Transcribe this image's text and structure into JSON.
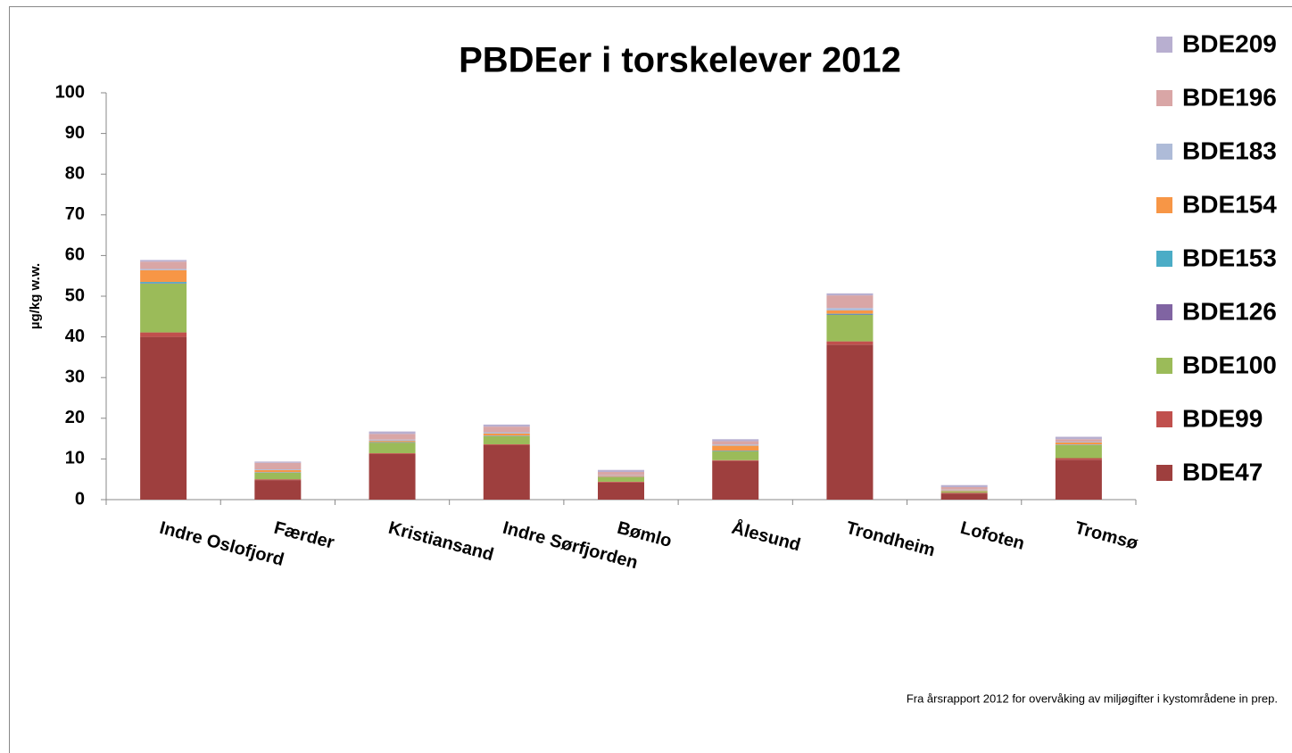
{
  "chart_data": {
    "type": "stacked_bar",
    "title": "PBDEer i torskelever 2012",
    "y_label": "µg/kg w.w.",
    "note": "Fra årsrapport 2012 for overvåking av miljøgifter i kystområdene in prep.",
    "categories": [
      "Indre Oslofjord",
      "Færder",
      "Kristiansand",
      "Indre Sørfjorden",
      "Bømlo",
      "Ålesund",
      "Trondheim",
      "Lofoten",
      "Tromsø"
    ],
    "series": [
      {
        "name": "BDE47",
        "color": "#9e3f3e",
        "values": [
          40,
          4.8,
          11.2,
          13.4,
          4.2,
          9.5,
          38.1,
          1.5,
          9.8
        ]
      },
      {
        "name": "BDE99",
        "color": "#c0504d",
        "values": [
          1.1,
          0.2,
          0.2,
          0.2,
          0.2,
          0.2,
          0.8,
          0.2,
          0.4
        ]
      },
      {
        "name": "BDE100",
        "color": "#9bbb59",
        "values": [
          12,
          1.6,
          2.6,
          2,
          1.1,
          2.2,
          6.5,
          0.3,
          3.2
        ]
      },
      {
        "name": "BDE126",
        "color": "#8064a2",
        "values": [
          0.1,
          0.05,
          0.05,
          0.05,
          0.05,
          0.05,
          0.1,
          0.02,
          0.05
        ]
      },
      {
        "name": "BDE153",
        "color": "#4bacc6",
        "values": [
          0.3,
          0.1,
          0.1,
          0.1,
          0.05,
          0.1,
          0.2,
          0.05,
          0.1
        ]
      },
      {
        "name": "BDE154",
        "color": "#f79646",
        "values": [
          2.9,
          0.5,
          0.3,
          0.5,
          0.2,
          1.2,
          0.8,
          0.2,
          0.5
        ]
      },
      {
        "name": "BDE183",
        "color": "#aebbd8",
        "values": [
          0.3,
          0.2,
          0.3,
          0.3,
          0.2,
          0.3,
          0.6,
          0.2,
          0.2
        ]
      },
      {
        "name": "BDE196",
        "color": "#d9a6a6",
        "values": [
          1.8,
          1.6,
          1.4,
          1.4,
          0.8,
          0.8,
          3.1,
          0.6,
          0.6
        ]
      },
      {
        "name": "BDE209",
        "color": "#b8afd0",
        "values": [
          0.4,
          0.3,
          0.6,
          0.5,
          0.5,
          0.5,
          0.5,
          0.5,
          0.6
        ]
      }
    ],
    "ylim": [
      0,
      100
    ],
    "yticks": [
      0,
      10,
      20,
      30,
      40,
      50,
      60,
      70,
      80,
      90,
      100
    ],
    "legend": "right"
  }
}
